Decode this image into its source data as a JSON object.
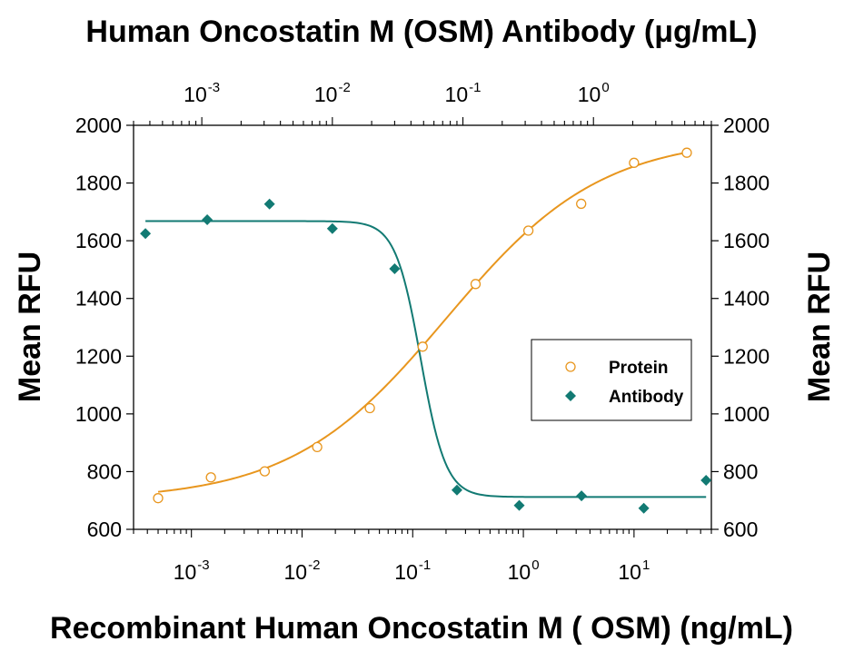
{
  "chart_data": {
    "type": "scatter",
    "title": "Human Oncostatin M (OSM) Antibody (μg/mL)",
    "xlabel": "Recombinant Human Oncostatin M ( OSM) (ng/mL)",
    "ylabel": "Mean RFU",
    "y2label": "Mean RFU",
    "xscale": "log",
    "xlim": [
      0.0003,
      50
    ],
    "ylim": [
      600,
      2000
    ],
    "yticks": [
      600,
      800,
      1000,
      1200,
      1400,
      1600,
      1800,
      2000
    ],
    "xticks": [
      {
        "base": "10",
        "exp": "-3",
        "value": 0.001
      },
      {
        "base": "10",
        "exp": "-2",
        "value": 0.01
      },
      {
        "base": "10",
        "exp": "-1",
        "value": 0.1
      },
      {
        "base": "10",
        "exp": "0",
        "value": 1
      },
      {
        "base": "10",
        "exp": "1",
        "value": 10
      }
    ],
    "top_axis": {
      "scale": "log",
      "xlim": [
        0.0003,
        8
      ],
      "xticks": [
        {
          "base": "10",
          "exp": "-3",
          "value": 0.001
        },
        {
          "base": "10",
          "exp": "-2",
          "value": 0.01
        },
        {
          "base": "10",
          "exp": "-1",
          "value": 0.1
        },
        {
          "base": "10",
          "exp": "0",
          "value": 1
        }
      ]
    },
    "legend_position": "center-right",
    "grid": false,
    "series": [
      {
        "name": "Protein",
        "marker": "open-circle",
        "color": "#E8961E",
        "axis": "bottom",
        "points": [
          {
            "x": 0.0005,
            "y": 708
          },
          {
            "x": 0.0015,
            "y": 780
          },
          {
            "x": 0.0046,
            "y": 801
          },
          {
            "x": 0.0137,
            "y": 885
          },
          {
            "x": 0.041,
            "y": 1020
          },
          {
            "x": 0.123,
            "y": 1233
          },
          {
            "x": 0.37,
            "y": 1450
          },
          {
            "x": 1.11,
            "y": 1635
          },
          {
            "x": 3.33,
            "y": 1728
          },
          {
            "x": 10,
            "y": 1870
          },
          {
            "x": 30,
            "y": 1905
          }
        ],
        "fit": {
          "bottom": 700,
          "top": 1960,
          "ec50": 0.2,
          "hill": 0.62
        }
      },
      {
        "name": "Antibody",
        "marker": "filled-diamond",
        "color": "#127A73",
        "axis": "top",
        "points": [
          {
            "x": 0.00037,
            "y": 1625
          },
          {
            "x": 0.0011,
            "y": 1673
          },
          {
            "x": 0.0033,
            "y": 1727
          },
          {
            "x": 0.01,
            "y": 1642
          },
          {
            "x": 0.03,
            "y": 1503
          },
          {
            "x": 0.09,
            "y": 736
          },
          {
            "x": 0.27,
            "y": 683
          },
          {
            "x": 0.81,
            "y": 716
          },
          {
            "x": 2.43,
            "y": 673
          },
          {
            "x": 7.29,
            "y": 770
          }
        ],
        "fit": {
          "top": 1668,
          "bottom": 712,
          "ec50": 0.0475,
          "hill": 4.5,
          "xmax": 7.29
        }
      }
    ]
  }
}
